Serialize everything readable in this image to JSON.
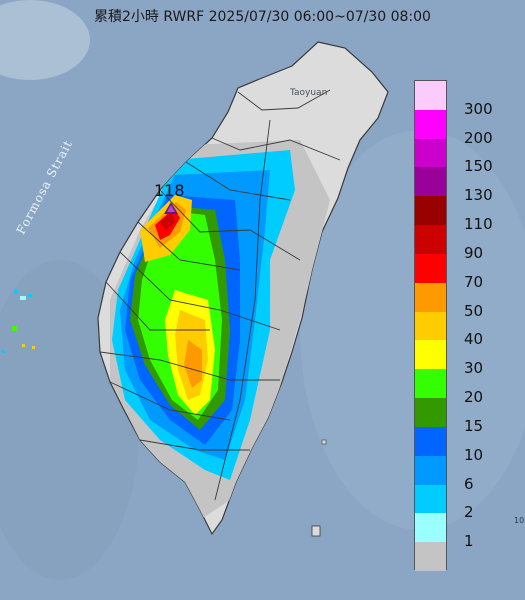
{
  "map": {
    "title": "累積2小時 RWRF 2025/07/30 06:00~07/30 08:00",
    "strait_label": "Formosa Strait",
    "city_label": "Taoyuan",
    "max_value": "118",
    "corner_label": "10",
    "colors": {
      "sea": "#8aa6c4",
      "land": "#dcdcdc",
      "no_rain": "#c4c4c4",
      "border": "#3a3a3a"
    }
  },
  "legend": {
    "items": [
      {
        "label": "300",
        "color": "#fbcbfb"
      },
      {
        "label": "200",
        "color": "#ff00ff"
      },
      {
        "label": "150",
        "color": "#cc00cc"
      },
      {
        "label": "130",
        "color": "#9a009a"
      },
      {
        "label": "110",
        "color": "#990000"
      },
      {
        "label": "90",
        "color": "#cc0000"
      },
      {
        "label": "70",
        "color": "#ff0000"
      },
      {
        "label": "50",
        "color": "#ff9900"
      },
      {
        "label": "40",
        "color": "#ffcc00"
      },
      {
        "label": "30",
        "color": "#ffff00"
      },
      {
        "label": "20",
        "color": "#33ff00"
      },
      {
        "label": "15",
        "color": "#339900"
      },
      {
        "label": "10",
        "color": "#0066ff"
      },
      {
        "label": "6",
        "color": "#0099ff"
      },
      {
        "label": "2",
        "color": "#00ccff"
      },
      {
        "label": "1",
        "color": "#99ffff"
      },
      {
        "label": "",
        "color": "#c4c4c4"
      }
    ]
  }
}
